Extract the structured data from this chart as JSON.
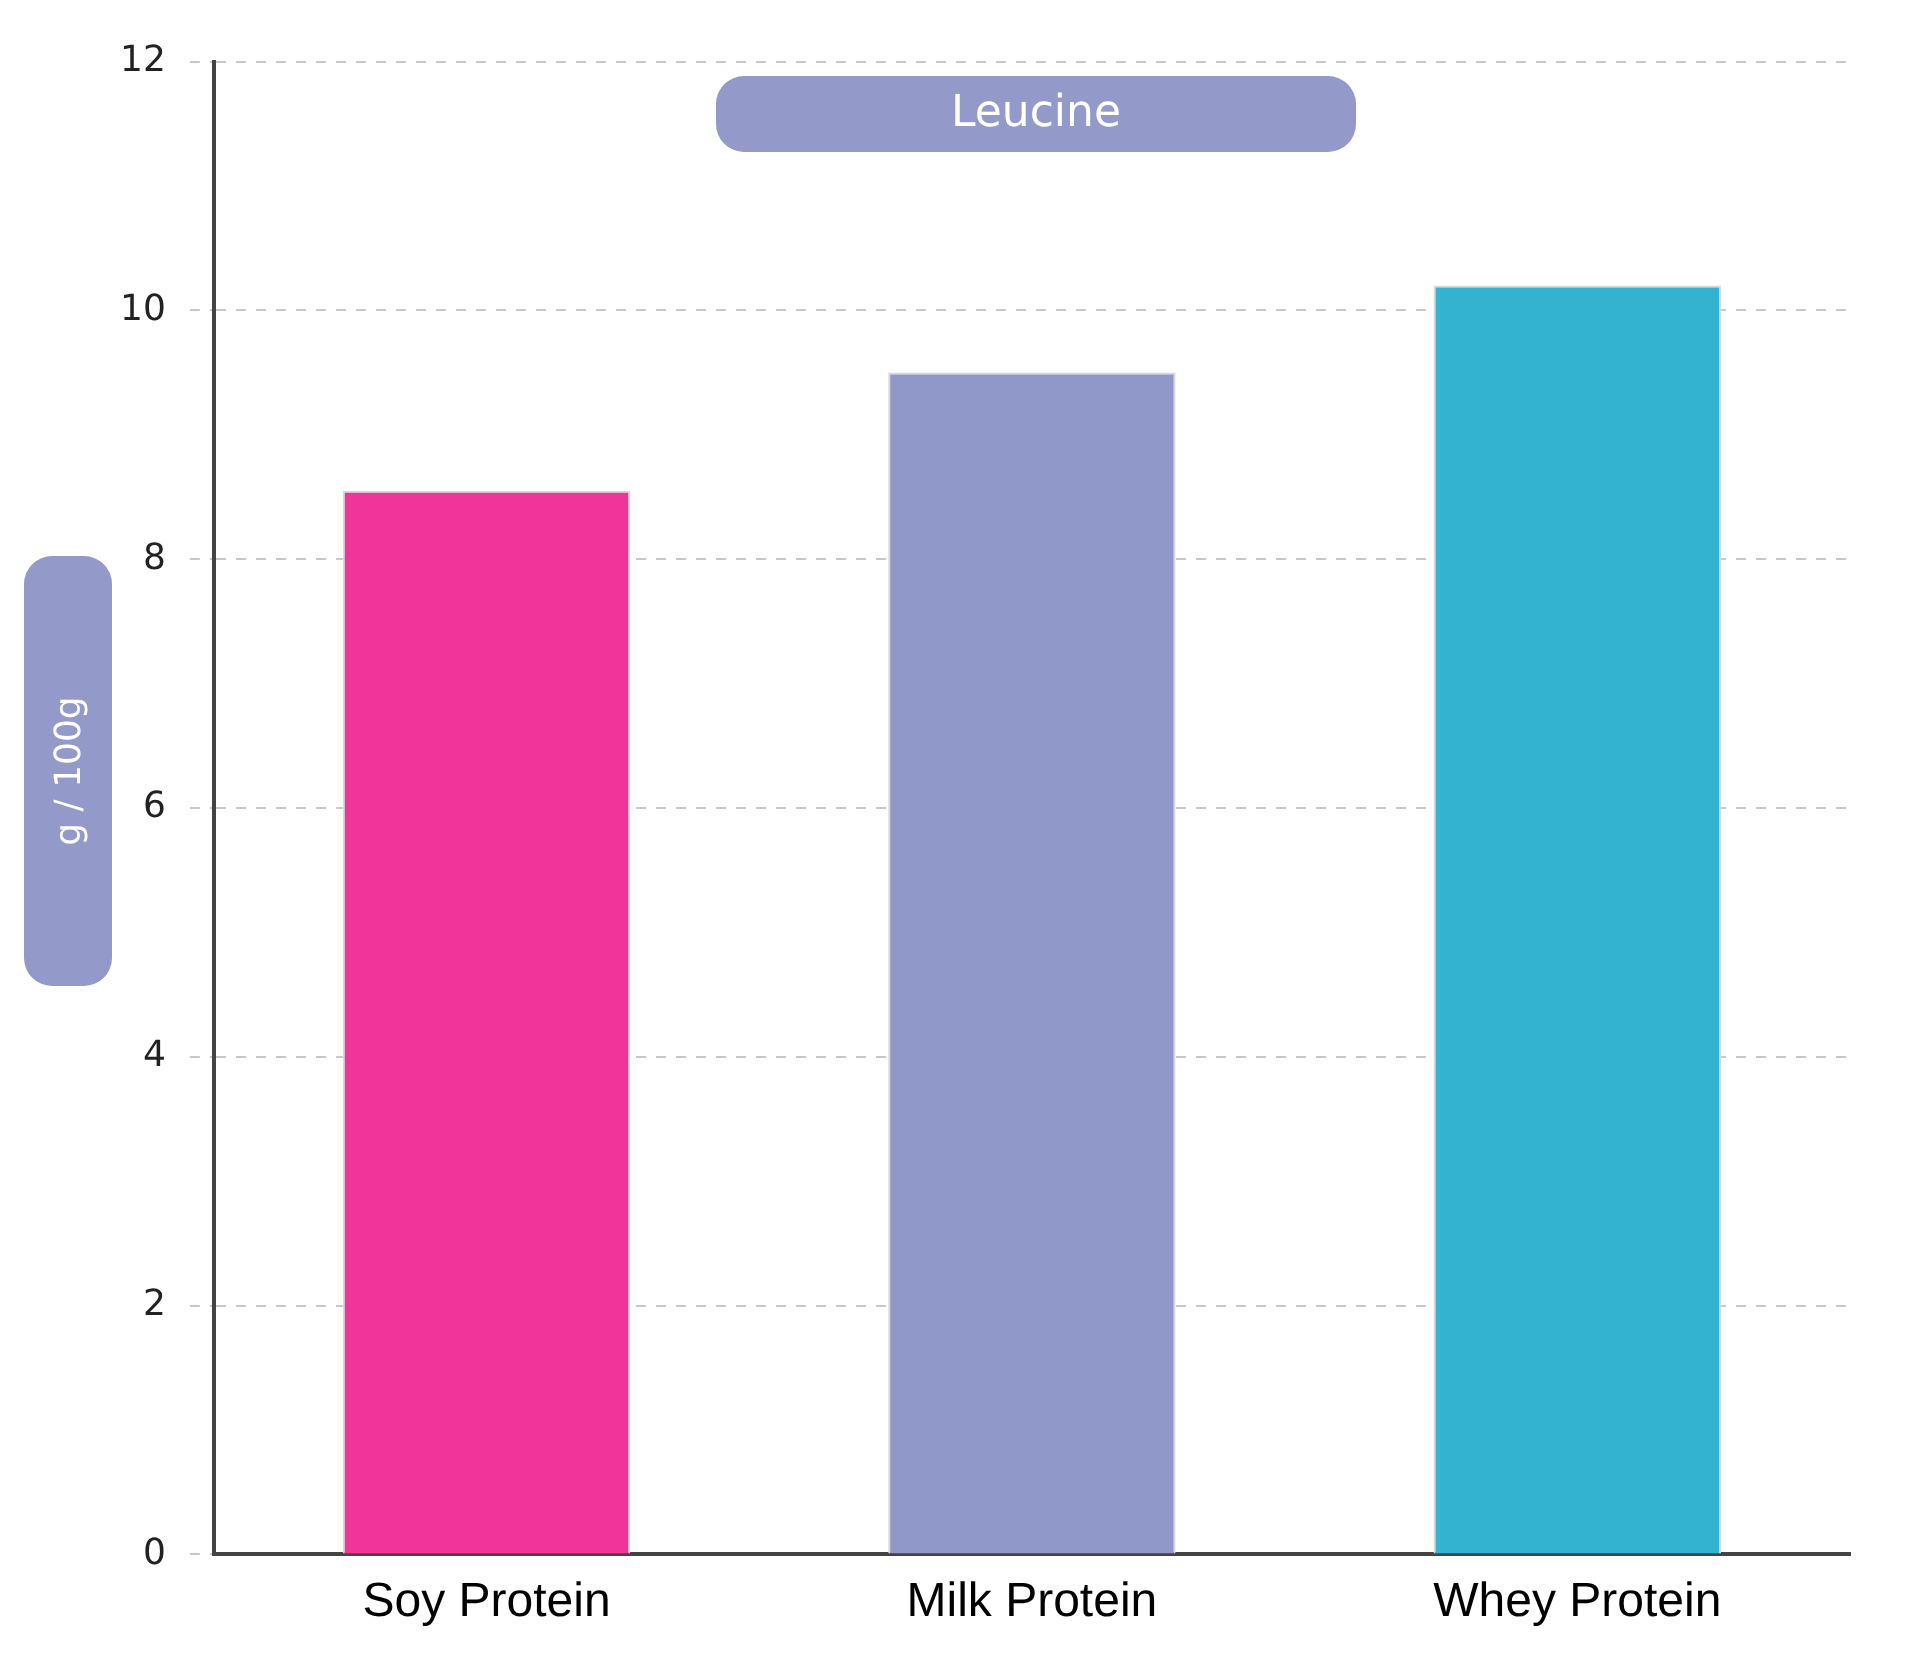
{
  "chart_data": {
    "type": "bar",
    "title": "Leucine",
    "ylabel": "g / 100g",
    "categories": [
      "Soy Protein",
      "Milk Protein",
      "Whey Protein"
    ],
    "values": [
      8.55,
      9.5,
      10.2
    ],
    "colors": [
      "#f0359a",
      "#8f98c8",
      "#33b3cf"
    ],
    "ylim": [
      0,
      12
    ],
    "yticks": [
      0,
      2,
      4,
      6,
      8,
      10,
      12
    ],
    "grid": "y",
    "legend": false
  }
}
